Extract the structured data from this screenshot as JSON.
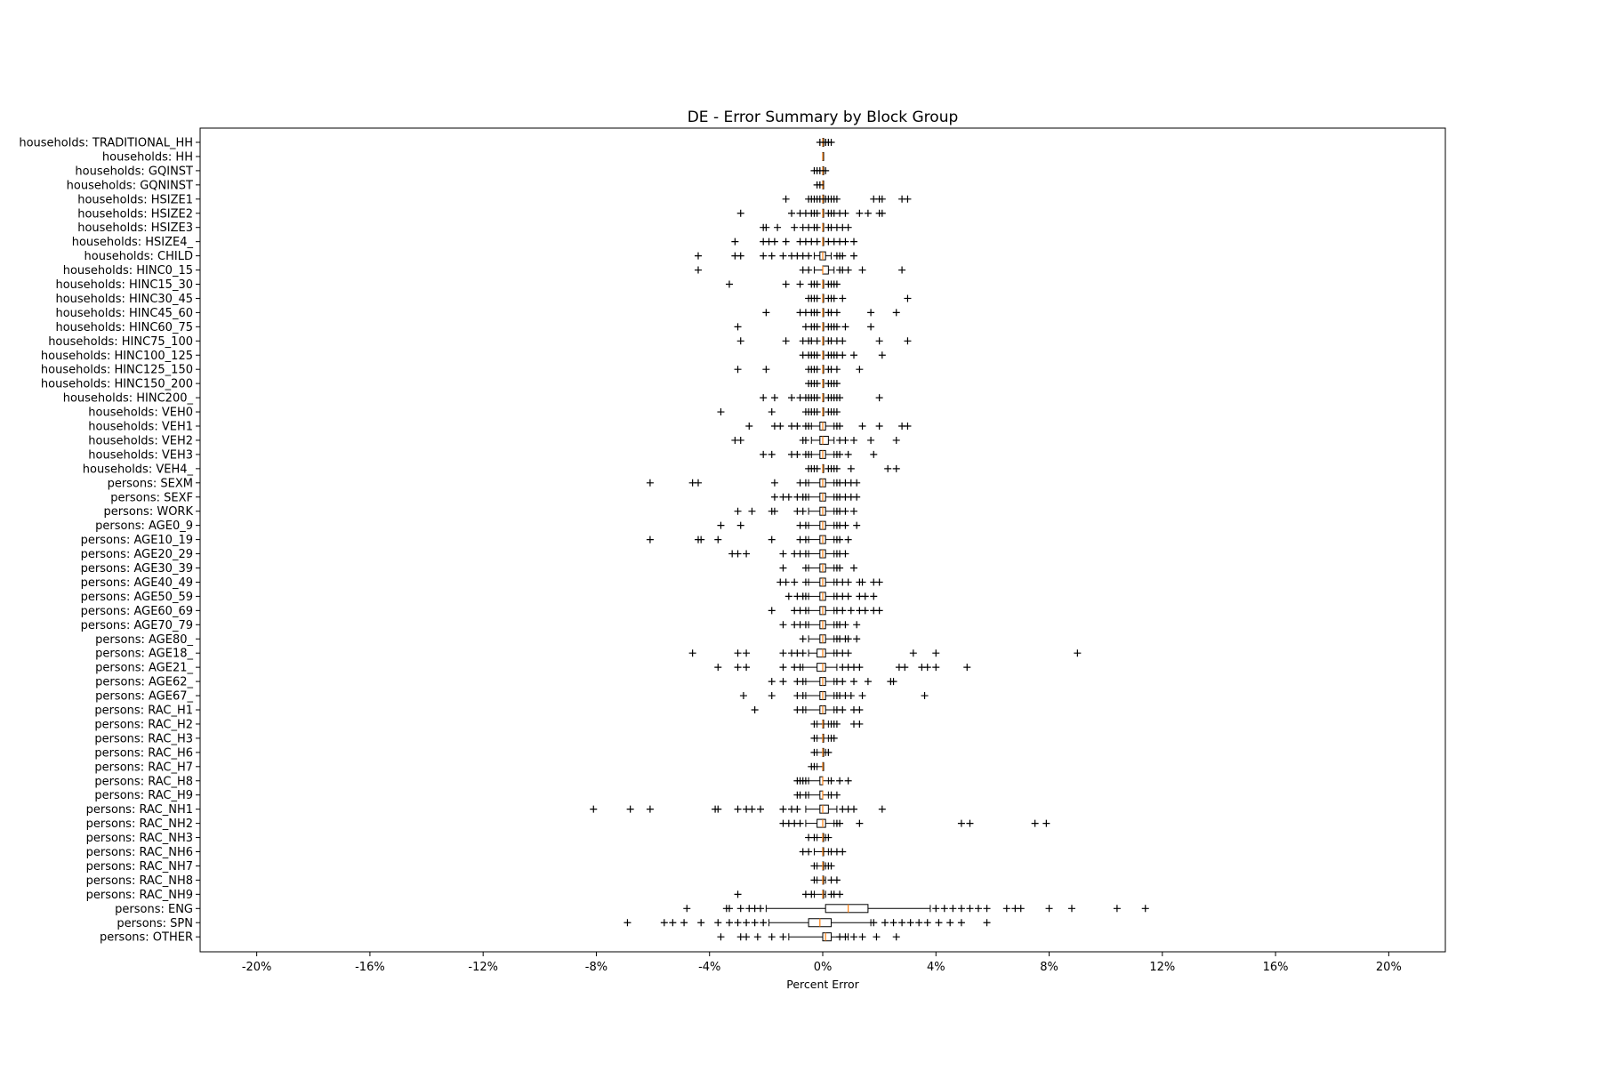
{
  "chart_data": {
    "type": "boxplot",
    "orientation": "horizontal",
    "title": "DE - Error Summary by Block Group",
    "xlabel": "Percent Error",
    "ylabel": "",
    "xlim": [
      -22,
      22
    ],
    "xticks": [
      -20,
      -16,
      -12,
      -8,
      -4,
      0,
      4,
      8,
      12,
      16,
      20
    ],
    "xtick_labels": [
      "-20%",
      "-16%",
      "-12%",
      "-8%",
      "-4%",
      "0%",
      "4%",
      "8%",
      "12%",
      "16%",
      "20%"
    ],
    "grid": false,
    "legend": "none",
    "colors": {
      "box": "#000000",
      "median": "#ff7f0e",
      "flier": "#000000",
      "axes": "#000000"
    },
    "categories": [
      "households: TRADITIONAL_HH",
      "households: HH",
      "households: GQINST",
      "households: GQNINST",
      "households: HSIZE1",
      "households: HSIZE2",
      "households: HSIZE3",
      "households: HSIZE4_",
      "households: CHILD",
      "households: HINC0_15",
      "households: HINC15_30",
      "households: HINC30_45",
      "households: HINC45_60",
      "households: HINC60_75",
      "households: HINC75_100",
      "households: HINC100_125",
      "households: HINC125_150",
      "households: HINC150_200",
      "households: HINC200_",
      "households: VEH0",
      "households: VEH1",
      "households: VEH2",
      "households: VEH3",
      "households: VEH4_",
      "persons: SEXM",
      "persons: SEXF",
      "persons: WORK",
      "persons: AGE0_9",
      "persons: AGE10_19",
      "persons: AGE20_29",
      "persons: AGE30_39",
      "persons: AGE40_49",
      "persons: AGE50_59",
      "persons: AGE60_69",
      "persons: AGE70_79",
      "persons: AGE80_",
      "persons: AGE18_",
      "persons: AGE21_",
      "persons: AGE62_",
      "persons: AGE67_",
      "persons: RAC_H1",
      "persons: RAC_H2",
      "persons: RAC_H3",
      "persons: RAC_H6",
      "persons: RAC_H7",
      "persons: RAC_H8",
      "persons: RAC_H9",
      "persons: RAC_NH1",
      "persons: RAC_NH2",
      "persons: RAC_NH3",
      "persons: RAC_NH6",
      "persons: RAC_NH7",
      "persons: RAC_NH8",
      "persons: RAC_NH9",
      "persons: ENG",
      "persons: SPN",
      "persons: OTHER"
    ],
    "boxes": [
      {
        "wl": 0.0,
        "q1": 0.0,
        "med": 0.0,
        "q3": 0.0,
        "wh": 0.1,
        "fliers": [
          -0.1,
          0.1,
          0.2,
          0.3
        ]
      },
      {
        "wl": 0.0,
        "q1": 0.0,
        "med": 0.0,
        "q3": 0.0,
        "wh": 0.0,
        "fliers": []
      },
      {
        "wl": 0.0,
        "q1": 0.0,
        "med": 0.0,
        "q3": 0.0,
        "wh": 0.0,
        "fliers": [
          -0.3,
          -0.2,
          -0.1,
          0.1
        ]
      },
      {
        "wl": 0.0,
        "q1": 0.0,
        "med": 0.0,
        "q3": 0.0,
        "wh": 0.0,
        "fliers": [
          -0.2,
          -0.1
        ]
      },
      {
        "wl": 0.0,
        "q1": 0.0,
        "med": 0.0,
        "q3": 0.0,
        "wh": 0.0,
        "fliers": [
          -1.3,
          -0.5,
          -0.4,
          -0.3,
          -0.2,
          -0.1,
          0.1,
          0.2,
          0.3,
          0.4,
          0.5,
          1.8,
          2.0,
          2.1,
          2.8,
          3.0
        ]
      },
      {
        "wl": 0.0,
        "q1": 0.0,
        "med": 0.0,
        "q3": 0.0,
        "wh": 0.0,
        "fliers": [
          -2.9,
          -1.1,
          -0.8,
          -0.6,
          -0.4,
          -0.3,
          -0.2,
          0.2,
          0.3,
          0.4,
          0.6,
          0.8,
          1.3,
          1.6,
          2.0,
          2.1
        ]
      },
      {
        "wl": 0.0,
        "q1": 0.0,
        "med": 0.0,
        "q3": 0.0,
        "wh": 0.0,
        "fliers": [
          -2.1,
          -2.0,
          -1.6,
          -1.0,
          -0.7,
          -0.5,
          -0.3,
          -0.2,
          0.2,
          0.3,
          0.5,
          0.7,
          0.9
        ]
      },
      {
        "wl": 0.0,
        "q1": 0.0,
        "med": 0.0,
        "q3": 0.0,
        "wh": 0.0,
        "fliers": [
          -3.1,
          -2.1,
          -1.9,
          -1.7,
          -1.3,
          -0.8,
          -0.6,
          -0.4,
          -0.2,
          0.2,
          0.4,
          0.6,
          0.8,
          1.1
        ]
      },
      {
        "wl": -0.3,
        "q1": -0.1,
        "med": 0.0,
        "q3": 0.1,
        "wh": 0.3,
        "fliers": [
          -4.4,
          -3.1,
          -2.9,
          -2.1,
          -1.8,
          -1.4,
          -1.1,
          -0.9,
          -0.7,
          -0.5,
          0.5,
          0.6,
          0.7,
          1.1
        ]
      },
      {
        "wl": -0.3,
        "q1": 0.0,
        "med": 0.0,
        "q3": 0.2,
        "wh": 0.4,
        "fliers": [
          -4.4,
          -0.7,
          -0.5,
          0.6,
          0.7,
          0.9,
          1.4,
          2.8
        ]
      },
      {
        "wl": 0.0,
        "q1": 0.0,
        "med": 0.0,
        "q3": 0.0,
        "wh": 0.0,
        "fliers": [
          -3.3,
          -1.3,
          -0.8,
          -0.4,
          -0.3,
          -0.2,
          0.2,
          0.3,
          0.4,
          0.5
        ]
      },
      {
        "wl": 0.0,
        "q1": 0.0,
        "med": 0.0,
        "q3": 0.0,
        "wh": 0.0,
        "fliers": [
          -0.5,
          -0.4,
          -0.3,
          -0.2,
          0.2,
          0.3,
          0.4,
          0.7,
          3.0
        ]
      },
      {
        "wl": 0.0,
        "q1": 0.0,
        "med": 0.0,
        "q3": 0.0,
        "wh": 0.0,
        "fliers": [
          -2.0,
          -0.8,
          -0.6,
          -0.4,
          -0.3,
          -0.2,
          0.2,
          0.3,
          0.5,
          1.7,
          2.6
        ]
      },
      {
        "wl": 0.0,
        "q1": 0.0,
        "med": 0.0,
        "q3": 0.0,
        "wh": 0.0,
        "fliers": [
          -3.0,
          -0.6,
          -0.4,
          -0.3,
          -0.2,
          0.2,
          0.3,
          0.4,
          0.5,
          0.8,
          1.7
        ]
      },
      {
        "wl": 0.0,
        "q1": 0.0,
        "med": 0.0,
        "q3": 0.0,
        "wh": 0.0,
        "fliers": [
          -2.9,
          -1.3,
          -0.7,
          -0.5,
          -0.4,
          -0.2,
          0.2,
          0.3,
          0.5,
          0.7,
          2.0,
          3.0
        ]
      },
      {
        "wl": 0.0,
        "q1": 0.0,
        "med": 0.0,
        "q3": 0.0,
        "wh": 0.0,
        "fliers": [
          -0.7,
          -0.5,
          -0.4,
          -0.3,
          -0.2,
          0.2,
          0.3,
          0.4,
          0.5,
          0.7,
          1.1,
          2.1
        ]
      },
      {
        "wl": 0.0,
        "q1": 0.0,
        "med": 0.0,
        "q3": 0.0,
        "wh": 0.0,
        "fliers": [
          -3.0,
          -2.0,
          -0.5,
          -0.4,
          -0.3,
          -0.2,
          0.2,
          0.3,
          0.5,
          1.3
        ]
      },
      {
        "wl": 0.0,
        "q1": 0.0,
        "med": 0.0,
        "q3": 0.0,
        "wh": 0.0,
        "fliers": [
          -0.5,
          -0.4,
          -0.3,
          -0.2,
          0.2,
          0.3,
          0.4,
          0.5
        ]
      },
      {
        "wl": 0.0,
        "q1": 0.0,
        "med": 0.0,
        "q3": 0.0,
        "wh": 0.0,
        "fliers": [
          -2.1,
          -1.7,
          -1.1,
          -0.8,
          -0.6,
          -0.5,
          -0.4,
          -0.3,
          -0.2,
          0.2,
          0.3,
          0.4,
          0.5,
          0.6,
          2.0
        ]
      },
      {
        "wl": 0.0,
        "q1": 0.0,
        "med": 0.0,
        "q3": 0.0,
        "wh": 0.0,
        "fliers": [
          -3.6,
          -1.8,
          -0.6,
          -0.5,
          -0.4,
          -0.3,
          -0.2,
          0.2,
          0.3,
          0.4,
          0.5
        ]
      },
      {
        "wl": -0.4,
        "q1": -0.1,
        "med": 0.0,
        "q3": 0.1,
        "wh": 0.4,
        "fliers": [
          -2.6,
          -1.7,
          -1.5,
          -1.1,
          -0.9,
          -0.6,
          -0.5,
          0.5,
          0.6,
          1.4,
          2.0,
          2.8,
          3.0
        ]
      },
      {
        "wl": -0.4,
        "q1": -0.1,
        "med": 0.0,
        "q3": 0.2,
        "wh": 0.4,
        "fliers": [
          -3.1,
          -2.9,
          -0.7,
          -0.6,
          0.6,
          0.8,
          1.1,
          1.7,
          2.6
        ]
      },
      {
        "wl": -0.4,
        "q1": -0.1,
        "med": 0.0,
        "q3": 0.1,
        "wh": 0.4,
        "fliers": [
          -2.1,
          -1.8,
          -1.1,
          -0.9,
          -0.6,
          -0.5,
          0.5,
          0.6,
          0.9,
          1.8
        ]
      },
      {
        "wl": 0.0,
        "q1": 0.0,
        "med": 0.0,
        "q3": 0.0,
        "wh": 0.0,
        "fliers": [
          -0.5,
          -0.4,
          -0.3,
          -0.2,
          0.2,
          0.3,
          0.4,
          0.5,
          1.0,
          2.3,
          2.6
        ]
      },
      {
        "wl": -0.5,
        "q1": -0.1,
        "med": 0.0,
        "q3": 0.1,
        "wh": 0.4,
        "fliers": [
          -6.1,
          -4.6,
          -4.4,
          -1.7,
          -0.8,
          -0.6,
          0.5,
          0.6,
          0.8,
          1.0,
          1.2
        ]
      },
      {
        "wl": -0.5,
        "q1": -0.1,
        "med": 0.0,
        "q3": 0.1,
        "wh": 0.4,
        "fliers": [
          -1.7,
          -1.4,
          -1.2,
          -0.9,
          -0.7,
          -0.6,
          0.5,
          0.6,
          0.8,
          1.0,
          1.2
        ]
      },
      {
        "wl": -0.5,
        "q1": -0.1,
        "med": 0.0,
        "q3": 0.1,
        "wh": 0.4,
        "fliers": [
          -3.0,
          -2.5,
          -1.8,
          -1.7,
          -0.9,
          -0.7,
          0.5,
          0.6,
          0.8,
          1.1
        ]
      },
      {
        "wl": -0.5,
        "q1": -0.1,
        "med": 0.0,
        "q3": 0.1,
        "wh": 0.4,
        "fliers": [
          -3.6,
          -2.9,
          -0.8,
          -0.6,
          0.5,
          0.6,
          0.8,
          1.2
        ]
      },
      {
        "wl": -0.5,
        "q1": -0.1,
        "med": 0.0,
        "q3": 0.1,
        "wh": 0.4,
        "fliers": [
          -6.1,
          -4.4,
          -4.3,
          -3.7,
          -1.8,
          -0.8,
          -0.6,
          0.5,
          0.6,
          0.9
        ]
      },
      {
        "wl": -0.5,
        "q1": -0.1,
        "med": 0.0,
        "q3": 0.1,
        "wh": 0.4,
        "fliers": [
          -3.2,
          -3.0,
          -2.7,
          -1.4,
          -1.0,
          -0.8,
          -0.6,
          0.5,
          0.6,
          0.8
        ]
      },
      {
        "wl": -0.5,
        "q1": -0.1,
        "med": 0.0,
        "q3": 0.1,
        "wh": 0.4,
        "fliers": [
          -1.4,
          -0.6,
          0.5,
          0.6,
          1.1
        ]
      },
      {
        "wl": -0.5,
        "q1": -0.1,
        "med": 0.0,
        "q3": 0.1,
        "wh": 0.4,
        "fliers": [
          -1.5,
          -1.3,
          -1.0,
          -0.6,
          0.5,
          0.7,
          0.9,
          1.3,
          1.4,
          1.8,
          2.0
        ]
      },
      {
        "wl": -0.5,
        "q1": -0.1,
        "med": 0.0,
        "q3": 0.1,
        "wh": 0.4,
        "fliers": [
          -1.2,
          -0.9,
          -0.7,
          -0.6,
          0.5,
          0.7,
          0.9,
          1.3,
          1.5,
          1.8
        ]
      },
      {
        "wl": -0.5,
        "q1": -0.1,
        "med": 0.0,
        "q3": 0.1,
        "wh": 0.4,
        "fliers": [
          -1.8,
          -1.0,
          -0.8,
          -0.6,
          0.5,
          0.7,
          1.0,
          1.3,
          1.5,
          1.8,
          2.0
        ]
      },
      {
        "wl": -0.5,
        "q1": -0.1,
        "med": 0.0,
        "q3": 0.1,
        "wh": 0.4,
        "fliers": [
          -1.4,
          -1.0,
          -0.8,
          -0.6,
          0.5,
          0.6,
          0.8,
          1.2
        ]
      },
      {
        "wl": -0.5,
        "q1": -0.1,
        "med": 0.0,
        "q3": 0.1,
        "wh": 0.4,
        "fliers": [
          -0.7,
          0.5,
          0.6,
          0.8,
          0.9,
          1.2
        ]
      },
      {
        "wl": -0.5,
        "q1": -0.2,
        "med": 0.0,
        "q3": 0.1,
        "wh": 0.4,
        "fliers": [
          -4.6,
          -3.0,
          -2.7,
          -1.4,
          -1.1,
          -0.9,
          -0.7,
          0.5,
          0.7,
          0.9,
          3.2,
          4.0,
          9.0
        ]
      },
      {
        "wl": -0.7,
        "q1": -0.2,
        "med": 0.0,
        "q3": 0.1,
        "wh": 0.5,
        "fliers": [
          -3.7,
          -3.0,
          -2.7,
          -1.4,
          -1.0,
          -0.8,
          0.7,
          0.9,
          1.1,
          1.3,
          2.7,
          2.9,
          3.5,
          3.7,
          4.0,
          5.1
        ]
      },
      {
        "wl": -0.6,
        "q1": -0.1,
        "med": 0.0,
        "q3": 0.1,
        "wh": 0.4,
        "fliers": [
          -1.8,
          -1.4,
          -0.9,
          -0.7,
          0.5,
          0.7,
          1.1,
          1.6,
          2.4,
          2.5
        ]
      },
      {
        "wl": -0.6,
        "q1": -0.1,
        "med": 0.0,
        "q3": 0.1,
        "wh": 0.4,
        "fliers": [
          -2.8,
          -1.8,
          -0.9,
          -0.7,
          0.5,
          0.6,
          0.8,
          1.0,
          1.4,
          3.6
        ]
      },
      {
        "wl": -0.6,
        "q1": -0.1,
        "med": 0.0,
        "q3": 0.1,
        "wh": 0.4,
        "fliers": [
          -2.4,
          -0.9,
          -0.7,
          0.5,
          0.7,
          1.1,
          1.3
        ]
      },
      {
        "wl": -0.2,
        "q1": 0.0,
        "med": 0.0,
        "q3": 0.0,
        "wh": 0.2,
        "fliers": [
          -0.3,
          0.3,
          0.4,
          0.5,
          1.1,
          1.3
        ]
      },
      {
        "wl": -0.2,
        "q1": 0.0,
        "med": 0.0,
        "q3": 0.0,
        "wh": 0.2,
        "fliers": [
          -0.3,
          0.3,
          0.4
        ]
      },
      {
        "wl": -0.2,
        "q1": 0.0,
        "med": 0.0,
        "q3": 0.0,
        "wh": 0.1,
        "fliers": [
          -0.3,
          0.2
        ]
      },
      {
        "wl": -0.2,
        "q1": 0.0,
        "med": 0.0,
        "q3": 0.0,
        "wh": 0.0,
        "fliers": [
          -0.4,
          -0.3
        ]
      },
      {
        "wl": -0.5,
        "q1": -0.1,
        "med": 0.0,
        "q3": 0.0,
        "wh": 0.2,
        "fliers": [
          -0.9,
          -0.8,
          -0.7,
          -0.6,
          0.3,
          0.6,
          0.9
        ]
      },
      {
        "wl": -0.5,
        "q1": -0.1,
        "med": 0.0,
        "q3": 0.0,
        "wh": 0.2,
        "fliers": [
          -0.9,
          -0.8,
          -0.6,
          0.3,
          0.5
        ]
      },
      {
        "wl": -0.6,
        "q1": -0.1,
        "med": 0.0,
        "q3": 0.2,
        "wh": 0.5,
        "fliers": [
          -8.1,
          -6.8,
          -6.1,
          -3.8,
          -3.7,
          -3.0,
          -2.7,
          -2.5,
          -2.2,
          -1.4,
          -1.1,
          -0.9,
          0.7,
          0.9,
          1.1,
          2.1
        ]
      },
      {
        "wl": -0.6,
        "q1": -0.2,
        "med": 0.0,
        "q3": 0.1,
        "wh": 0.4,
        "fliers": [
          -1.4,
          -1.2,
          -1.0,
          -0.8,
          0.5,
          0.6,
          1.3,
          4.9,
          5.2,
          7.5,
          7.9
        ]
      },
      {
        "wl": -0.2,
        "q1": 0.0,
        "med": 0.0,
        "q3": 0.0,
        "wh": 0.1,
        "fliers": [
          -0.5,
          -0.3,
          0.2
        ]
      },
      {
        "wl": -0.3,
        "q1": 0.0,
        "med": 0.0,
        "q3": 0.0,
        "wh": 0.2,
        "fliers": [
          -0.7,
          -0.5,
          0.3,
          0.5,
          0.7
        ]
      },
      {
        "wl": -0.2,
        "q1": 0.0,
        "med": 0.0,
        "q3": 0.0,
        "wh": 0.1,
        "fliers": [
          -0.3,
          0.2,
          0.3
        ]
      },
      {
        "wl": -0.2,
        "q1": 0.0,
        "med": 0.0,
        "q3": 0.0,
        "wh": 0.1,
        "fliers": [
          -0.3,
          0.3,
          0.5
        ]
      },
      {
        "wl": -0.3,
        "q1": 0.0,
        "med": 0.0,
        "q3": 0.0,
        "wh": 0.1,
        "fliers": [
          -3.0,
          -0.6,
          -0.4,
          0.3,
          0.4,
          0.6
        ]
      },
      {
        "wl": -2.0,
        "q1": 0.1,
        "med": 0.9,
        "q3": 1.6,
        "wh": 3.8,
        "fliers": [
          -4.8,
          -3.4,
          -3.3,
          -2.9,
          -2.6,
          -2.4,
          -2.2,
          4.0,
          4.3,
          4.6,
          4.9,
          5.2,
          5.5,
          5.8,
          6.5,
          6.8,
          7.0,
          8.0,
          8.8,
          10.4,
          11.4
        ]
      },
      {
        "wl": -1.9,
        "q1": -0.5,
        "med": -0.1,
        "q3": 0.3,
        "wh": 1.7,
        "fliers": [
          -6.9,
          -5.6,
          -5.3,
          -4.9,
          -4.3,
          -3.7,
          -3.3,
          -3.0,
          -2.7,
          -2.4,
          -2.1,
          1.8,
          2.2,
          2.5,
          2.8,
          3.1,
          3.4,
          3.7,
          4.1,
          4.5,
          4.9,
          5.8
        ]
      },
      {
        "wl": -1.2,
        "q1": 0.0,
        "med": 0.1,
        "q3": 0.3,
        "wh": 0.9,
        "fliers": [
          -3.6,
          -2.9,
          -2.7,
          -2.3,
          -1.8,
          -1.4,
          0.6,
          0.8,
          1.1,
          1.4,
          1.9,
          2.6
        ]
      }
    ]
  }
}
